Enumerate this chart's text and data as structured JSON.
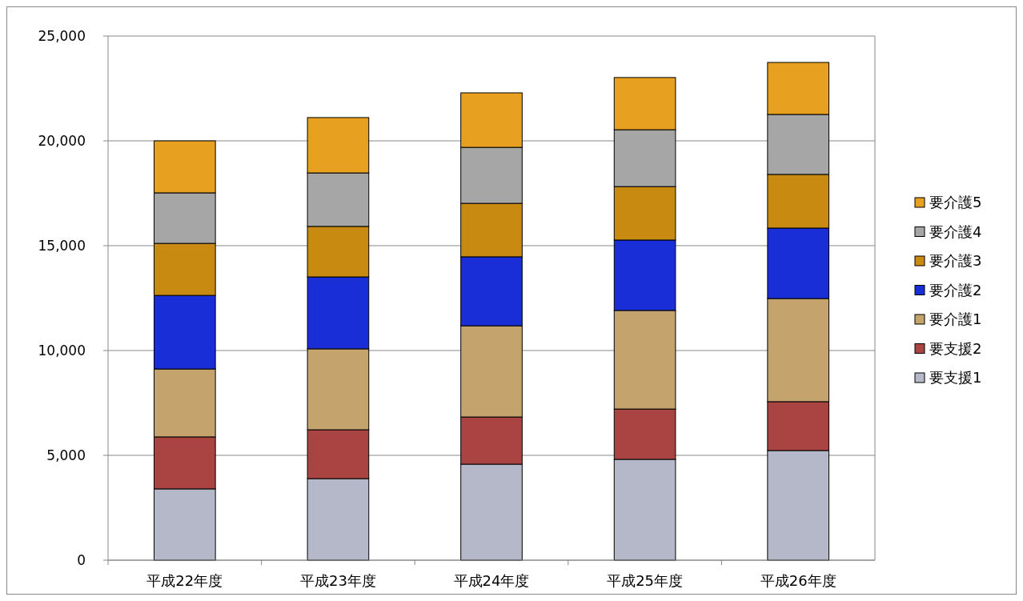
{
  "chart_data": {
    "type": "bar",
    "stacked": true,
    "categories": [
      "平成22年度",
      "平成23年度",
      "平成24年度",
      "平成25年度",
      "平成26年度"
    ],
    "series": [
      {
        "name": "要支援1",
        "color": "#b4b8c8",
        "values": [
          3400,
          3890,
          4580,
          4810,
          5230
        ]
      },
      {
        "name": "要支援2",
        "color": "#a94442",
        "values": [
          2480,
          2330,
          2250,
          2400,
          2330
        ]
      },
      {
        "name": "要介護1",
        "color": "#c4a46c",
        "values": [
          3240,
          3860,
          4350,
          4700,
          4920
        ]
      },
      {
        "name": "要介護2",
        "color": "#1a2ed8",
        "values": [
          3510,
          3430,
          3290,
          3360,
          3360
        ]
      },
      {
        "name": "要介護3",
        "color": "#c88a10",
        "values": [
          2480,
          2410,
          2550,
          2550,
          2560
        ]
      },
      {
        "name": "要介護4",
        "color": "#a6a6a6",
        "values": [
          2410,
          2550,
          2670,
          2710,
          2860
        ]
      },
      {
        "name": "要介護5",
        "color": "#e8a020",
        "values": [
          2480,
          2640,
          2600,
          2490,
          2480
        ]
      }
    ],
    "ylim": [
      0,
      25000
    ],
    "yticks": [
      {
        "value": 0,
        "label": "0"
      },
      {
        "value": 5000,
        "label": "5,000"
      },
      {
        "value": 10000,
        "label": "10,000"
      },
      {
        "value": 15000,
        "label": "15,000"
      },
      {
        "value": 20000,
        "label": "20,000"
      },
      {
        "value": 25000,
        "label": "25,000"
      }
    ],
    "grid": "y",
    "legend": "right"
  }
}
